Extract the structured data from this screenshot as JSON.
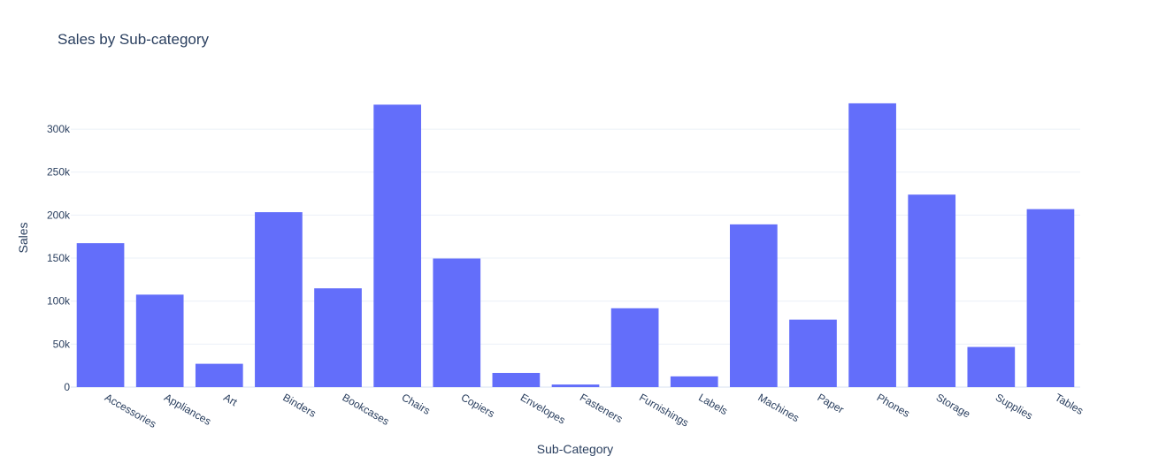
{
  "chart_data": {
    "type": "bar",
    "title": "Sales by Sub-category",
    "xlabel": "Sub-Category",
    "ylabel": "Sales",
    "categories": [
      "Accessories",
      "Appliances",
      "Art",
      "Binders",
      "Bookcases",
      "Chairs",
      "Copiers",
      "Envelopes",
      "Fasteners",
      "Furnishings",
      "Labels",
      "Machines",
      "Paper",
      "Phones",
      "Storage",
      "Supplies",
      "Tables"
    ],
    "values": [
      167380,
      107532,
      27119,
      203413,
      114880,
      328449,
      149528,
      16476,
      3024,
      91705,
      12486,
      189239,
      78479,
      330007,
      223844,
      46674,
      206966
    ],
    "yticks": [
      0,
      50000,
      100000,
      150000,
      200000,
      250000,
      300000
    ],
    "ytick_labels": [
      "0",
      "50k",
      "100k",
      "150k",
      "200k",
      "250k",
      "300k"
    ],
    "ylim": [
      0,
      347376
    ],
    "grid": true,
    "legend": "none",
    "bar_color": "#636efa"
  }
}
